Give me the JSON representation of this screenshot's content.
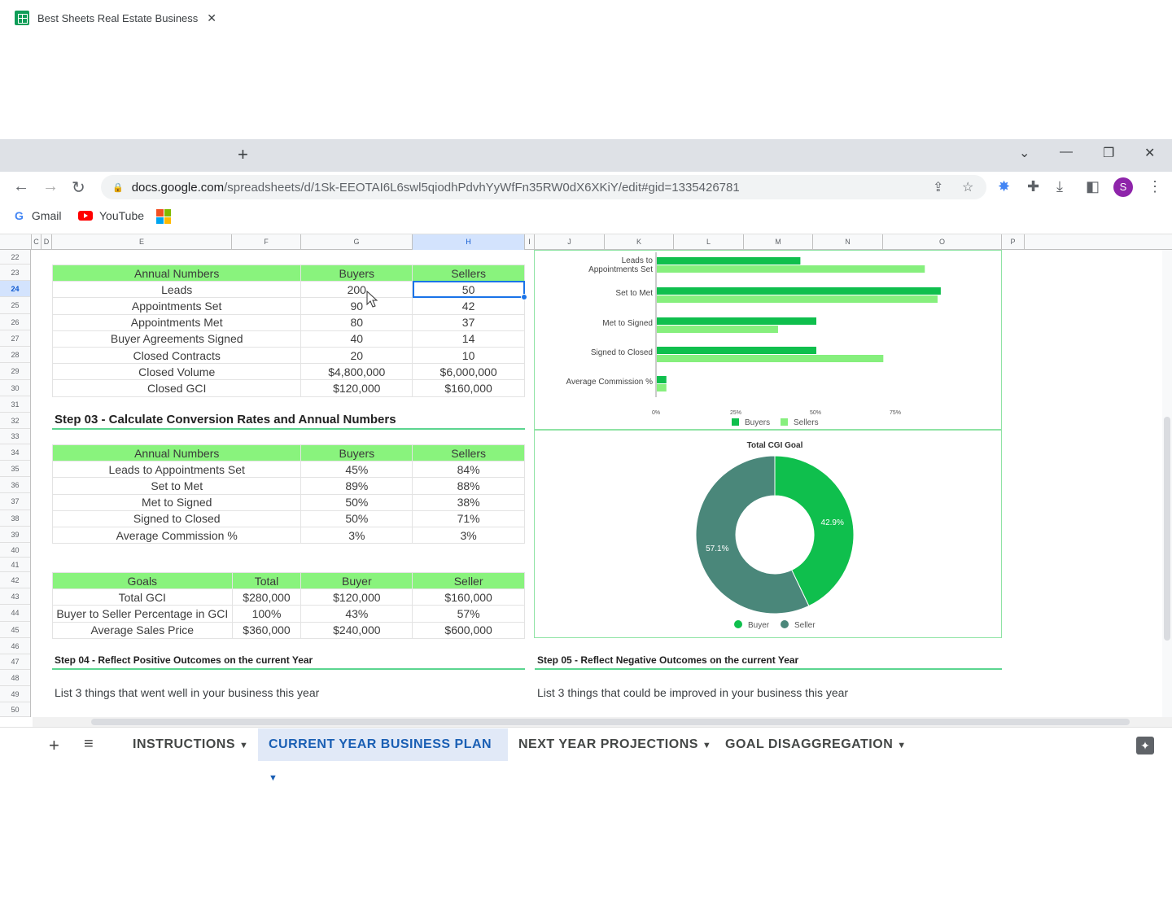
{
  "browser": {
    "tab_title": "Best Sheets Real Estate Business",
    "new_tab": "+",
    "url_host": "docs.google.com",
    "url_path": "/spreadsheets/d/1Sk-EEOTAI6L6swl5qiodhPdvhYyWfFn35RW0dX6XKiY/edit#gid=1335426781",
    "profile_initial": "S",
    "bookmarks": [
      "Gmail",
      "YouTube"
    ]
  },
  "columns": [
    "C",
    "D",
    "E",
    "F",
    "G",
    "H",
    "I",
    "J",
    "K",
    "L",
    "M",
    "N",
    "O",
    "P"
  ],
  "rows": [
    "22",
    "23",
    "24",
    "25",
    "26",
    "27",
    "28",
    "29",
    "30",
    "31",
    "32",
    "33",
    "34",
    "35",
    "36",
    "37",
    "38",
    "39",
    "40",
    "41",
    "42",
    "43",
    "44",
    "45",
    "46",
    "47",
    "48",
    "49",
    "50"
  ],
  "table1": {
    "headers": [
      "Annual Numbers",
      "Buyers",
      "Sellers"
    ],
    "rows": [
      [
        "Leads",
        "200",
        "50"
      ],
      [
        "Appointments Set",
        "90",
        "42"
      ],
      [
        "Appointments Met",
        "80",
        "37"
      ],
      [
        "Buyer Agreements Signed",
        "40",
        "14"
      ],
      [
        "Closed Contracts",
        "20",
        "10"
      ],
      [
        "Closed Volume",
        "$4,800,000",
        "$6,000,000"
      ],
      [
        "Closed GCI",
        "$120,000",
        "$160,000"
      ]
    ]
  },
  "step03": "Step 03 - Calculate Conversion Rates and Annual Numbers",
  "table2": {
    "headers": [
      "Annual Numbers",
      "Buyers",
      "Sellers"
    ],
    "rows": [
      [
        "Leads to Appointments Set",
        "45%",
        "84%"
      ],
      [
        "Set to Met",
        "89%",
        "88%"
      ],
      [
        "Met to Signed",
        "50%",
        "38%"
      ],
      [
        "Signed to Closed",
        "50%",
        "71%"
      ],
      [
        "Average Commission %",
        "3%",
        "3%"
      ]
    ]
  },
  "table3": {
    "headers": [
      "Goals",
      "Total",
      "Buyer",
      "Seller"
    ],
    "rows": [
      [
        "Total GCI",
        "$280,000",
        "$120,000",
        "$160,000"
      ],
      [
        "Buyer to Seller Percentage in GCI",
        "100%",
        "43%",
        "57%"
      ],
      [
        "Average Sales Price",
        "$360,000",
        "$240,000",
        "$600,000"
      ]
    ]
  },
  "step04": "Step 04 - Reflect Positive Outcomes on the current Year",
  "step04_list": "List 3 things that went well in your business this year",
  "step05": "Step 05 - Reflect Negative Outcomes on the current Year",
  "step05_list": "List 3 things that could be improved in your business this year",
  "sheet_tabs": [
    "INSTRUCTIONS",
    "CURRENT YEAR BUSINESS PLAN",
    "NEXT YEAR PROJECTIONS",
    "GOAL DISAGGREGATION"
  ],
  "colors": {
    "buyers": "#0fbf4d",
    "sellers": "#86ef7d",
    "seller_donut": "#4a877a",
    "header_green": "#89f37d"
  },
  "chart_data": [
    {
      "type": "bar",
      "orientation": "horizontal",
      "categories": [
        "Leads to Appointments Set",
        "Set to Met",
        "Met to Signed",
        "Signed to Closed",
        "Average Commission %"
      ],
      "series": [
        {
          "name": "Buyers",
          "values": [
            45,
            89,
            50,
            50,
            3
          ]
        },
        {
          "name": "Sellers",
          "values": [
            84,
            88,
            38,
            71,
            3
          ]
        }
      ],
      "ticks": [
        "0%",
        "25%",
        "50%",
        "75%"
      ],
      "xlim": [
        0,
        100
      ],
      "legend": "bottom"
    },
    {
      "type": "pie",
      "title": "Total CGI Goal",
      "donut": true,
      "slices": [
        {
          "name": "Buyer",
          "value": 42.9,
          "label": "42.9%"
        },
        {
          "name": "Seller",
          "value": 57.1,
          "label": "57.1%"
        }
      ],
      "legend": "bottom"
    }
  ]
}
